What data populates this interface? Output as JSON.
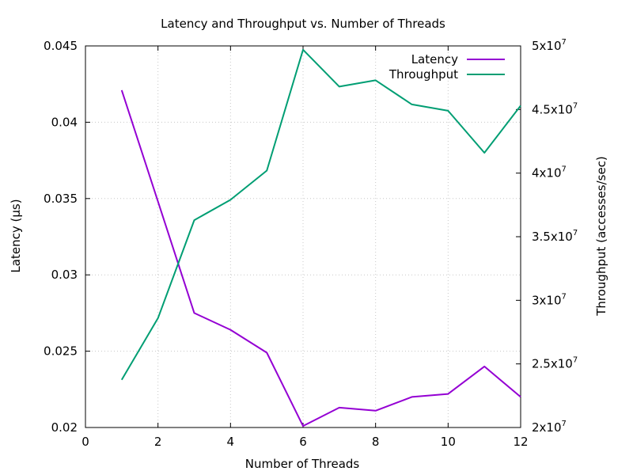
{
  "chart_data": {
    "type": "line",
    "title": "Latency and Throughput vs. Number of Threads",
    "xlabel": "Number of Threads",
    "ylabel_left": "Latency (μs)",
    "ylabel_right": "Throughput (accesses/sec)",
    "xlim": [
      0,
      12
    ],
    "ylim_left": [
      0.02,
      0.045
    ],
    "ylim_right": [
      20000000,
      50000000
    ],
    "grid": true,
    "legend_position": "top-right",
    "x_ticks": [
      "0",
      "2",
      "4",
      "6",
      "8",
      "10",
      "12"
    ],
    "y_left_ticks": [
      "0.02",
      "0.025",
      "0.03",
      "0.035",
      "0.04",
      "0.045"
    ],
    "y_right_ticks": [
      {
        "base": "2x10",
        "exp": "7"
      },
      {
        "base": "2.5x10",
        "exp": "7"
      },
      {
        "base": "3x10",
        "exp": "7"
      },
      {
        "base": "3.5x10",
        "exp": "7"
      },
      {
        "base": "4x10",
        "exp": "7"
      },
      {
        "base": "4.5x10",
        "exp": "7"
      },
      {
        "base": "5x10",
        "exp": "7"
      }
    ],
    "x": [
      1,
      2,
      3,
      4,
      5,
      6,
      7,
      8,
      9,
      10,
      11,
      12
    ],
    "series": [
      {
        "name": "Latency",
        "axis": "left",
        "color": "#9400d3",
        "values": [
          0.0421,
          0.0348,
          0.0275,
          0.0264,
          0.0249,
          0.0201,
          0.0213,
          0.0211,
          0.022,
          0.0222,
          0.024,
          0.022
        ]
      },
      {
        "name": "Throughput",
        "axis": "right",
        "color": "#009e73",
        "values": [
          23750000,
          28600000,
          36300000,
          37900000,
          40200000,
          49700000,
          46800000,
          47300000,
          45400000,
          44900000,
          41600000,
          45300000
        ]
      }
    ]
  }
}
